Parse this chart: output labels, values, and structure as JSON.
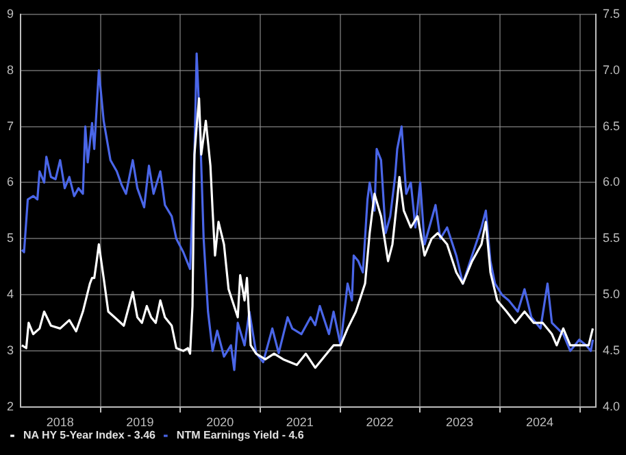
{
  "chart_data": {
    "type": "line",
    "series": [
      {
        "name": "NA HY 5-Year Index - 3.46",
        "color": "#ffffff",
        "axis": "y",
        "x": [
          "2018-01-07",
          "2018-01-27",
          "2018-02-07",
          "2018-02-28",
          "2018-03-29",
          "2018-04-19",
          "2018-05-20",
          "2018-07-01",
          "2018-08-12",
          "2018-09-12",
          "2018-10-13",
          "2018-11-14",
          "2018-11-24",
          "2018-12-04",
          "2018-12-15",
          "2018-12-25",
          "2019-01-16",
          "2019-02-06",
          "2019-03-07",
          "2019-04-18",
          "2019-05-29",
          "2019-06-19",
          "2019-07-10",
          "2019-08-01",
          "2019-08-21",
          "2019-09-11",
          "2019-10-02",
          "2019-10-23",
          "2019-11-23",
          "2019-12-14",
          "2020-01-15",
          "2020-02-05",
          "2020-02-15",
          "2020-02-26",
          "2020-03-06",
          "2020-03-16",
          "2020-03-27",
          "2020-04-06",
          "2020-04-27",
          "2020-05-18",
          "2020-05-28",
          "2020-06-08",
          "2020-06-24",
          "2020-07-19",
          "2020-08-09",
          "2020-09-20",
          "2020-10-01",
          "2020-10-21",
          "2020-11-01",
          "2020-11-18",
          "2020-12-13",
          "2021-01-24",
          "2021-03-05",
          "2021-04-16",
          "2021-06-17",
          "2021-07-28",
          "2021-09-09",
          "2021-10-21",
          "2021-12-02",
          "2022-01-03",
          "2022-02-04",
          "2022-03-14",
          "2022-04-25",
          "2022-05-16",
          "2022-06-07",
          "2022-07-07",
          "2022-08-08",
          "2022-08-28",
          "2022-09-19",
          "2022-09-29",
          "2022-10-19",
          "2022-11-20",
          "2022-12-21",
          "2023-01-22",
          "2023-02-23",
          "2023-03-23",
          "2023-05-05",
          "2023-06-16",
          "2023-07-16",
          "2023-08-27",
          "2023-10-09",
          "2023-10-29",
          "2023-11-19",
          "2023-12-20",
          "2024-02-01",
          "2024-03-12",
          "2024-04-23",
          "2024-06-04",
          "2024-07-15",
          "2024-08-26",
          "2024-09-17",
          "2024-10-17",
          "2024-11-18",
          "2024-12-29",
          "2025-02-10",
          "2025-03-01"
        ],
        "values": [
          3.1,
          3.05,
          3.5,
          3.3,
          3.4,
          3.7,
          3.45,
          3.4,
          3.55,
          3.35,
          3.7,
          4.2,
          4.3,
          4.3,
          4.6,
          4.9,
          4.3,
          3.7,
          3.6,
          3.45,
          4.05,
          3.6,
          3.5,
          3.8,
          3.6,
          3.5,
          3.9,
          3.6,
          3.45,
          3.05,
          3.0,
          3.05,
          2.95,
          3.8,
          6.5,
          7.0,
          7.5,
          6.5,
          7.1,
          6.3,
          5.5,
          4.7,
          5.3,
          4.9,
          4.1,
          3.6,
          4.35,
          3.9,
          4.3,
          3.1,
          2.95,
          2.85,
          2.95,
          2.85,
          2.75,
          2.95,
          2.7,
          2.9,
          3.1,
          3.1,
          3.4,
          3.7,
          4.2,
          5.1,
          5.8,
          5.4,
          4.6,
          4.9,
          5.7,
          6.1,
          5.5,
          5.2,
          5.4,
          4.7,
          5.0,
          5.1,
          4.9,
          4.4,
          4.2,
          4.6,
          4.9,
          5.3,
          4.4,
          3.9,
          3.7,
          3.5,
          3.7,
          3.5,
          3.5,
          3.3,
          3.1,
          3.4,
          3.1,
          3.1,
          3.1,
          3.4
        ]
      },
      {
        "name": "NTM Earnings Yield - 4.6",
        "color": "#4a66e8",
        "axis": "y2",
        "x": [
          "2018-01-07",
          "2018-01-17",
          "2018-02-03",
          "2018-02-28",
          "2018-03-19",
          "2018-03-29",
          "2018-04-19",
          "2018-04-29",
          "2018-05-20",
          "2018-06-10",
          "2018-07-01",
          "2018-07-22",
          "2018-08-12",
          "2018-09-03",
          "2018-09-23",
          "2018-10-13",
          "2018-10-24",
          "2018-11-04",
          "2018-11-24",
          "2018-12-04",
          "2018-12-25",
          "2019-01-16",
          "2019-02-16",
          "2019-03-17",
          "2019-04-08",
          "2019-04-28",
          "2019-05-29",
          "2019-06-19",
          "2019-07-20",
          "2019-08-11",
          "2019-09-01",
          "2019-10-02",
          "2019-10-23",
          "2019-11-23",
          "2019-12-14",
          "2020-01-15",
          "2020-02-15",
          "2020-03-06",
          "2020-03-16",
          "2020-04-02",
          "2020-04-17",
          "2020-05-07",
          "2020-05-28",
          "2020-06-18",
          "2020-07-19",
          "2020-08-20",
          "2020-09-04",
          "2020-09-20",
          "2020-10-21",
          "2020-11-12",
          "2020-12-13",
          "2021-01-14",
          "2021-02-25",
          "2021-03-26",
          "2021-05-06",
          "2021-05-27",
          "2021-07-08",
          "2021-08-19",
          "2021-09-09",
          "2021-09-30",
          "2021-11-11",
          "2021-12-02",
          "2022-01-03",
          "2022-02-04",
          "2022-02-24",
          "2022-03-04",
          "2022-03-25",
          "2022-04-15",
          "2022-05-06",
          "2022-05-16",
          "2022-06-07",
          "2022-06-17",
          "2022-07-07",
          "2022-07-28",
          "2022-08-18",
          "2022-09-09",
          "2022-09-19",
          "2022-10-09",
          "2022-10-30",
          "2022-11-20",
          "2022-12-11",
          "2023-01-02",
          "2023-01-22",
          "2023-03-13",
          "2023-04-04",
          "2023-05-05",
          "2023-06-16",
          "2023-07-16",
          "2023-08-27",
          "2023-10-09",
          "2023-10-29",
          "2023-11-19",
          "2023-12-10",
          "2024-01-11",
          "2024-02-11",
          "2024-03-23",
          "2024-04-23",
          "2024-05-24",
          "2024-07-05",
          "2024-08-06",
          "2024-08-26",
          "2024-10-17",
          "2024-11-18",
          "2024-12-29",
          "2025-01-30",
          "2025-02-20",
          "2025-03-01"
        ],
        "values": [
          5.4,
          5.38,
          5.85,
          5.88,
          5.85,
          6.1,
          6.0,
          6.23,
          6.05,
          6.03,
          6.2,
          5.95,
          6.05,
          5.88,
          5.95,
          5.9,
          6.5,
          6.18,
          6.53,
          6.3,
          7.0,
          6.55,
          6.2,
          6.1,
          5.98,
          5.9,
          6.2,
          5.95,
          5.78,
          6.15,
          5.9,
          6.1,
          5.8,
          5.7,
          5.5,
          5.38,
          5.23,
          6.25,
          7.15,
          6.4,
          5.5,
          4.85,
          4.5,
          4.68,
          4.45,
          4.55,
          4.33,
          4.75,
          4.55,
          4.85,
          4.48,
          4.4,
          4.7,
          4.48,
          4.8,
          4.7,
          4.65,
          4.8,
          4.73,
          4.9,
          4.65,
          4.85,
          4.55,
          5.1,
          4.95,
          5.35,
          5.3,
          5.2,
          5.85,
          6.0,
          5.75,
          6.3,
          6.2,
          5.55,
          5.7,
          6.05,
          6.3,
          6.5,
          5.9,
          6.0,
          5.6,
          6.0,
          5.45,
          5.8,
          5.5,
          5.6,
          5.35,
          5.1,
          5.35,
          5.6,
          5.75,
          5.3,
          5.1,
          5.0,
          4.95,
          4.85,
          5.05,
          4.8,
          4.7,
          5.1,
          4.75,
          4.65,
          4.5,
          4.6,
          4.55,
          4.5,
          4.6
        ]
      }
    ],
    "xlim": [
      "2018-01-01",
      "2025-03-15"
    ],
    "xticks": [
      {
        "value": "2018-07-01",
        "label": "2018"
      },
      {
        "value": "2019-01-01",
        "label": null
      },
      {
        "value": "2019-07-01",
        "label": "2019"
      },
      {
        "value": "2020-01-01",
        "label": null
      },
      {
        "value": "2020-07-01",
        "label": "2020"
      },
      {
        "value": "2021-01-01",
        "label": null
      },
      {
        "value": "2021-07-01",
        "label": "2021"
      },
      {
        "value": "2022-01-01",
        "label": null
      },
      {
        "value": "2022-07-01",
        "label": "2022"
      },
      {
        "value": "2023-01-01",
        "label": null
      },
      {
        "value": "2023-07-01",
        "label": "2023"
      },
      {
        "value": "2024-01-01",
        "label": null
      },
      {
        "value": "2024-07-01",
        "label": "2024"
      },
      {
        "value": "2025-01-01",
        "label": null
      }
    ],
    "ylim": [
      2,
      9
    ],
    "yticks": [
      2,
      3,
      4,
      5,
      6,
      7,
      8,
      9
    ],
    "y2lim": [
      4,
      7.5
    ],
    "y2ticks": [
      {
        "value": 4,
        "label": "4.0"
      },
      {
        "value": 4.5,
        "label": "4.5"
      },
      {
        "value": 5,
        "label": "5.0"
      },
      {
        "value": 5.5,
        "label": "5.5"
      },
      {
        "value": 6,
        "label": "6.0"
      },
      {
        "value": 6.5,
        "label": "6.5"
      },
      {
        "value": 7,
        "label": "7.0"
      },
      7.5
    ],
    "grid": true,
    "legend": "bottom",
    "marker": "none",
    "line_style": "solid"
  }
}
